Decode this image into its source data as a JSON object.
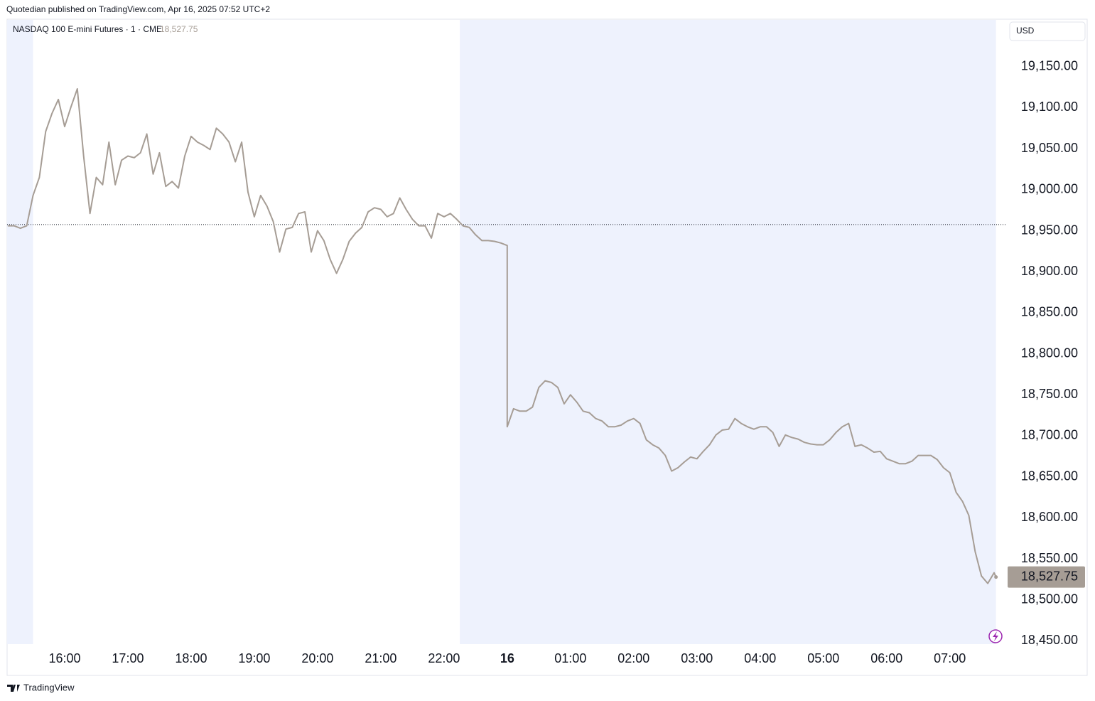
{
  "header": "Quotedian published on TradingView.com, Apr 16, 2025 07:52 UTC+2",
  "footer": "TradingView",
  "chart_data": {
    "type": "line",
    "title": "NASDAQ 100 E-mini Futures · 1 · CME",
    "currency": "USD",
    "color": "#a69d95",
    "last_price": {
      "value": 18527.75,
      "label": "18,527.75"
    },
    "reference_line": 18957.5,
    "highlighted_ranges": [
      [
        15.09,
        15.5
      ],
      [
        22.25,
        31.73
      ]
    ],
    "xbreak": [
      23,
      24
    ],
    "xlim": [
      15.09,
      31.88
    ],
    "ylim": [
      18446,
      19207
    ],
    "xticks": [
      {
        "value": 16,
        "label": "16:00"
      },
      {
        "value": 17,
        "label": "17:00"
      },
      {
        "value": 18,
        "label": "18:00"
      },
      {
        "value": 19,
        "label": "19:00"
      },
      {
        "value": 20,
        "label": "20:00"
      },
      {
        "value": 21,
        "label": "21:00"
      },
      {
        "value": 22,
        "label": "22:00"
      },
      {
        "value": 24,
        "label": "16"
      },
      {
        "value": 25,
        "label": "01:00"
      },
      {
        "value": 26,
        "label": "02:00"
      },
      {
        "value": 27,
        "label": "03:00"
      },
      {
        "value": 28,
        "label": "04:00"
      },
      {
        "value": 29,
        "label": "05:00"
      },
      {
        "value": 30,
        "label": "06:00"
      },
      {
        "value": 31,
        "label": "07:00"
      }
    ],
    "yticks": [
      {
        "value": 18450,
        "label": "18,450.00"
      },
      {
        "value": 18500,
        "label": "18,500.00"
      },
      {
        "value": 18550,
        "label": "18,550.00"
      },
      {
        "value": 18600,
        "label": "18,600.00"
      },
      {
        "value": 18650,
        "label": "18,650.00"
      },
      {
        "value": 18700,
        "label": "18,700.00"
      },
      {
        "value": 18750,
        "label": "18,750.00"
      },
      {
        "value": 18800,
        "label": "18,800.00"
      },
      {
        "value": 18850,
        "label": "18,850.00"
      },
      {
        "value": 18900,
        "label": "18,900.00"
      },
      {
        "value": 18950,
        "label": "18,950.00"
      },
      {
        "value": 19000,
        "label": "19,000.00"
      },
      {
        "value": 19050,
        "label": "19,050.00"
      },
      {
        "value": 19100,
        "label": "19,100.00"
      },
      {
        "value": 19150,
        "label": "19,150.00"
      }
    ],
    "x": [
      15.1,
      15.2,
      15.3,
      15.4,
      15.5,
      15.6,
      15.7,
      15.8,
      15.9,
      16.0,
      16.1,
      16.2,
      16.3,
      16.4,
      16.5,
      16.6,
      16.7,
      16.8,
      16.9,
      17.0,
      17.1,
      17.2,
      17.3,
      17.4,
      17.5,
      17.6,
      17.7,
      17.8,
      17.9,
      18.0,
      18.1,
      18.2,
      18.3,
      18.4,
      18.5,
      18.6,
      18.7,
      18.8,
      18.9,
      19.0,
      19.1,
      19.2,
      19.3,
      19.4,
      19.5,
      19.6,
      19.7,
      19.8,
      19.9,
      20.0,
      20.1,
      20.2,
      20.3,
      20.4,
      20.5,
      20.6,
      20.7,
      20.8,
      20.9,
      21.0,
      21.1,
      21.2,
      21.3,
      21.4,
      21.5,
      21.6,
      21.7,
      21.8,
      21.9,
      22.0,
      22.1,
      22.2,
      22.3,
      22.4,
      22.5,
      22.6,
      22.7,
      22.8,
      22.9,
      23.0,
      24.0,
      24.1,
      24.2,
      24.3,
      24.4,
      24.5,
      24.6,
      24.7,
      24.8,
      24.9,
      25.0,
      25.1,
      25.2,
      25.3,
      25.4,
      25.5,
      25.6,
      25.7,
      25.8,
      25.9,
      26.0,
      26.1,
      26.2,
      26.3,
      26.4,
      26.5,
      26.6,
      26.7,
      26.8,
      26.9,
      27.0,
      27.1,
      27.2,
      27.3,
      27.4,
      27.5,
      27.6,
      27.7,
      27.8,
      27.9,
      28.0,
      28.1,
      28.2,
      28.3,
      28.4,
      28.5,
      28.6,
      28.7,
      28.8,
      28.9,
      29.0,
      29.1,
      29.2,
      29.3,
      29.4,
      29.5,
      29.6,
      29.7,
      29.8,
      29.9,
      30.0,
      30.1,
      30.2,
      30.3,
      30.4,
      30.5,
      30.6,
      30.7,
      30.8,
      30.9,
      31.0,
      31.1,
      31.2,
      31.3,
      31.4,
      31.5,
      31.6,
      31.7,
      31.73
    ],
    "values": [
      18956,
      18956,
      18953,
      18956,
      18993,
      19015,
      19071,
      19093,
      19110,
      19077,
      19101,
      19123,
      19041,
      18971,
      19015,
      19006,
      19058,
      19006,
      19036,
      19041,
      19039,
      19045,
      19068,
      19019,
      19045,
      19004,
      19010,
      19002,
      19041,
      19065,
      19058,
      19054,
      19049,
      19075,
      19068,
      19058,
      19034,
      19058,
      18997,
      18967,
      18993,
      18980,
      18961,
      18924,
      18952,
      18954,
      18971,
      18973,
      18924,
      18950,
      18938,
      18915,
      18898,
      18915,
      18937,
      18947,
      18954,
      18973,
      18978,
      18976,
      18967,
      18971,
      18990,
      18976,
      18964,
      18956,
      18956,
      18941,
      18971,
      18967,
      18971,
      18964,
      18956,
      18954,
      18945,
      18938,
      18938,
      18937,
      18935,
      18932,
      18711,
      18733,
      18730,
      18730,
      18735,
      18759,
      18767,
      18765,
      18759,
      18739,
      18750,
      18741,
      18730,
      18728,
      18721,
      18718,
      18711,
      18711,
      18713,
      18718,
      18721,
      18715,
      18695,
      18689,
      18685,
      18676,
      18657,
      18661,
      18668,
      18674,
      18672,
      18681,
      18689,
      18701,
      18707,
      18708,
      18721,
      18715,
      18711,
      18708,
      18711,
      18711,
      18704,
      18687,
      18701,
      18698,
      18696,
      18692,
      18690,
      18689,
      18689,
      18695,
      18704,
      18711,
      18715,
      18687,
      18689,
      18685,
      18680,
      18681,
      18672,
      18669,
      18666,
      18666,
      18669,
      18676,
      18676,
      18676,
      18671,
      18661,
      18655,
      18631,
      18620,
      18603,
      18559,
      18529,
      18520,
      18533,
      18527.75
    ]
  }
}
